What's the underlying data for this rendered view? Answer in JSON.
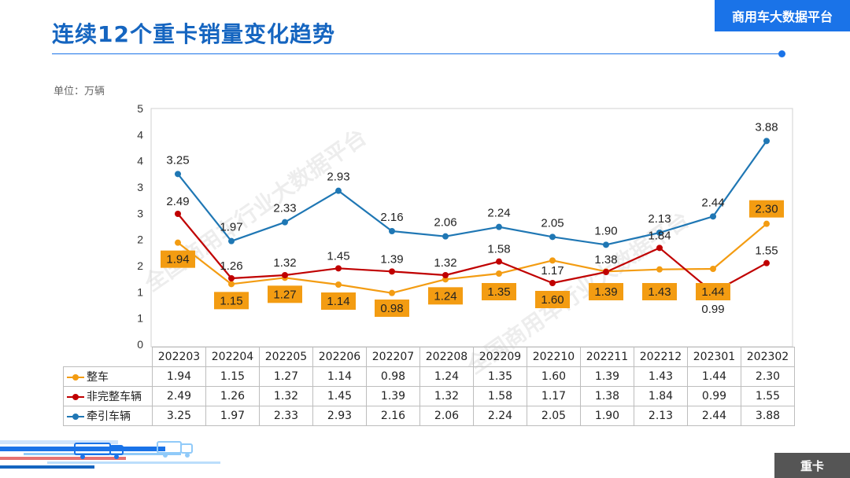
{
  "header": {
    "title": "连续12个重卡销量变化趋势",
    "brand": "商用车大数据平台",
    "unit_label": "单位：万辆",
    "section_tag": "重卡"
  },
  "watermark": "全国商用车行业大数据平台",
  "colors": {
    "title": "#1565c0",
    "brand_bg": "#1a73e8",
    "series_whole": "#f39c12",
    "series_incomplete": "#c00000",
    "series_tractor": "#1f77b4",
    "label_box": "#f39c12"
  },
  "chart_data": {
    "type": "line",
    "y_tick_labels": [
      "0",
      "1",
      "1",
      "2",
      "2",
      "3",
      "3",
      "4",
      "4",
      "5"
    ],
    "ylim": [
      0,
      4.5
    ],
    "grid": false,
    "legend": "data-table",
    "categories": [
      "202203",
      "202204",
      "202205",
      "202206",
      "202207",
      "202208",
      "202209",
      "202210",
      "202211",
      "202212",
      "202301",
      "202302"
    ],
    "series": [
      {
        "name": "整车",
        "color": "#f39c12",
        "values": [
          1.94,
          1.15,
          1.27,
          1.14,
          0.98,
          1.24,
          1.35,
          1.6,
          1.39,
          1.43,
          1.44,
          2.3
        ]
      },
      {
        "name": "非完整车辆",
        "color": "#c00000",
        "values": [
          2.49,
          1.26,
          1.32,
          1.45,
          1.39,
          1.32,
          1.58,
          1.17,
          1.38,
          1.84,
          0.99,
          1.55
        ]
      },
      {
        "name": "牵引车辆",
        "color": "#1f77b4",
        "values": [
          3.25,
          1.97,
          2.33,
          2.93,
          2.16,
          2.06,
          2.24,
          2.05,
          1.9,
          2.13,
          2.44,
          3.88
        ]
      }
    ]
  }
}
